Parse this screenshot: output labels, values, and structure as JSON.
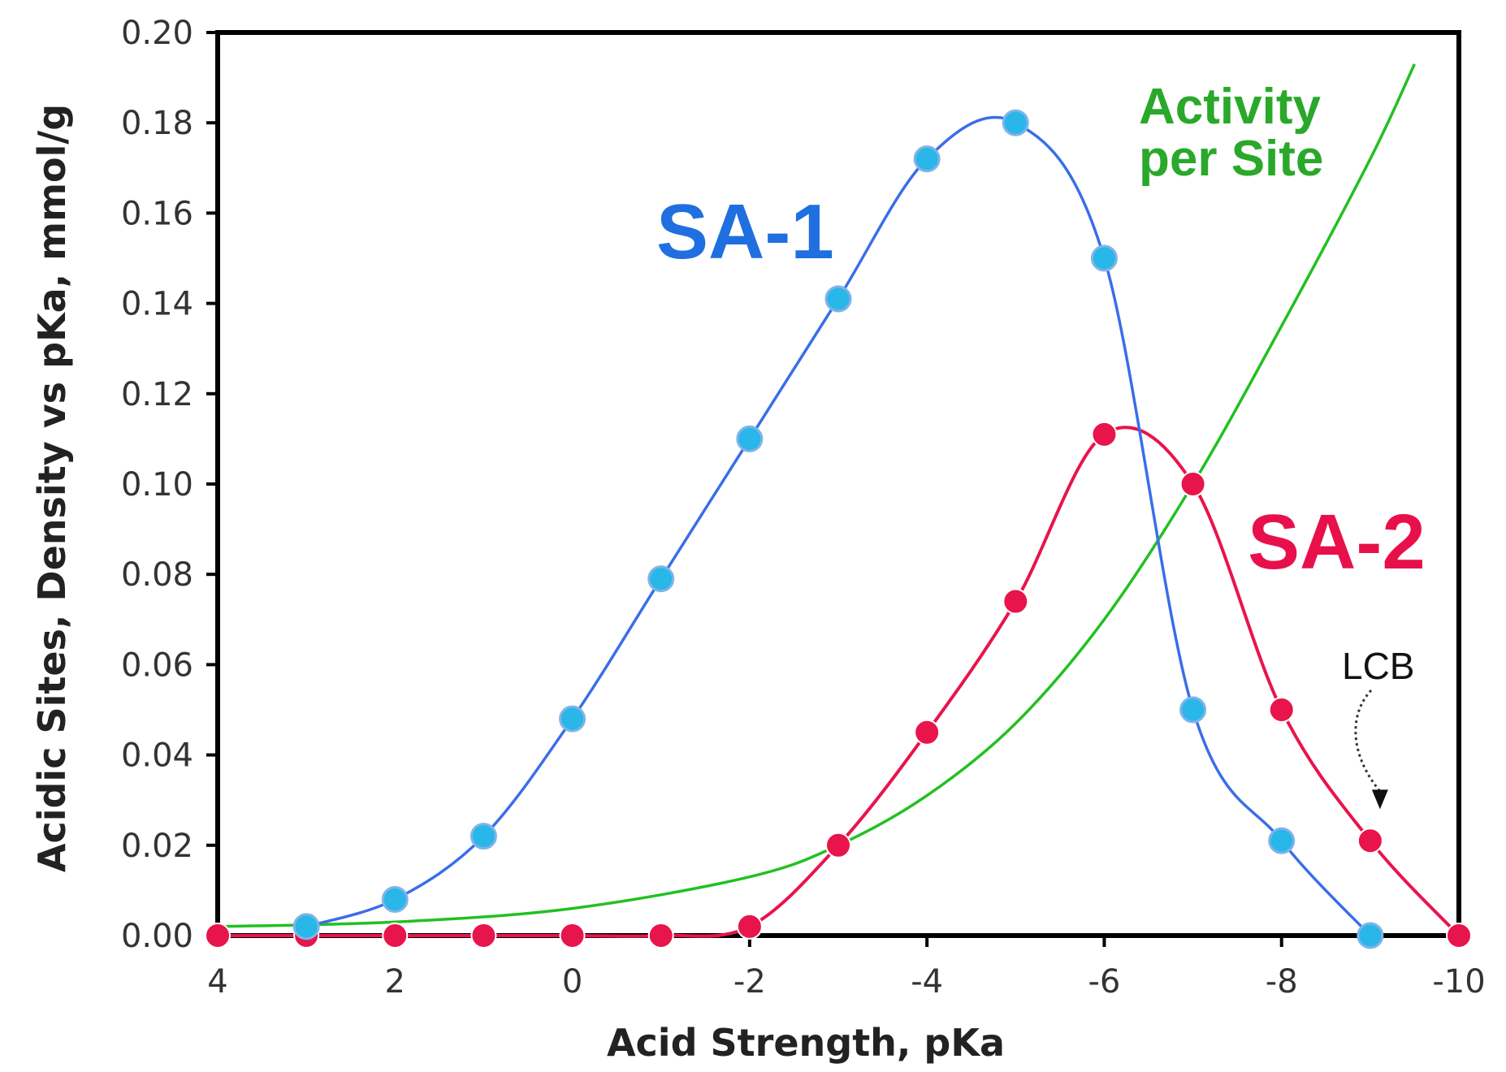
{
  "chart_data": {
    "type": "line",
    "title": "",
    "xlabel": "Acid Strength, pKa",
    "ylabel": "Acidic Sites, Density vs pKa, mmol/g",
    "xlim": [
      4,
      -10
    ],
    "ylim": [
      0,
      0.2
    ],
    "x_ticks": [
      4,
      2,
      0,
      -2,
      -4,
      -6,
      -8,
      -10
    ],
    "x_tick_labels": [
      "4",
      "2",
      "0",
      "-2",
      "-4",
      "-6",
      "-8",
      "-10"
    ],
    "y_ticks": [
      0,
      0.02,
      0.04,
      0.06,
      0.08,
      0.1,
      0.12,
      0.14,
      0.16,
      0.18,
      0.2
    ],
    "y_tick_labels": [
      "0.00",
      "0.02",
      "0.04",
      "0.06",
      "0.08",
      "0.10",
      "0.12",
      "0.14",
      "0.16",
      "0.18",
      "0.20"
    ],
    "grid": false,
    "series": [
      {
        "name": "SA-1",
        "label": "SA-1",
        "line_color": "#3a6ee8",
        "marker_color": "#29b6e8",
        "label_color": "#1f6fe0",
        "x": [
          3,
          2,
          1,
          0,
          -1,
          -2,
          -3,
          -4,
          -5,
          -6,
          -7,
          -8,
          -9
        ],
        "values": [
          0.002,
          0.008,
          0.022,
          0.048,
          0.079,
          0.11,
          0.141,
          0.172,
          0.18,
          0.15,
          0.05,
          0.021,
          0.0
        ]
      },
      {
        "name": "SA-2",
        "label": "SA-2",
        "line_color": "#e8144c",
        "marker_color": "#e8144c",
        "label_color": "#e8104a",
        "x": [
          4,
          3,
          2,
          1,
          0,
          -1,
          -2,
          -3,
          -4,
          -5,
          -6,
          -7,
          -8,
          -9,
          -10
        ],
        "values": [
          0.0,
          0.0,
          0.0,
          0.0,
          0.0,
          0.0,
          0.002,
          0.02,
          0.045,
          0.074,
          0.111,
          0.1,
          0.05,
          0.021,
          0.0
        ]
      },
      {
        "name": "Activity per Site",
        "label_line1": "Activity",
        "label_line2": "per Site",
        "line_color": "#22c022",
        "label_color": "#2aa82a",
        "x": [
          4,
          2,
          0,
          -2,
          -3,
          -4,
          -5,
          -6,
          -7,
          -8,
          -9,
          -9.5
        ],
        "values": [
          0.002,
          0.003,
          0.006,
          0.013,
          0.02,
          0.031,
          0.047,
          0.07,
          0.1,
          0.135,
          0.172,
          0.193
        ]
      }
    ],
    "annotations": [
      {
        "text": "LCB",
        "points_to_x": -9,
        "points_to_y": 0.028
      }
    ]
  }
}
